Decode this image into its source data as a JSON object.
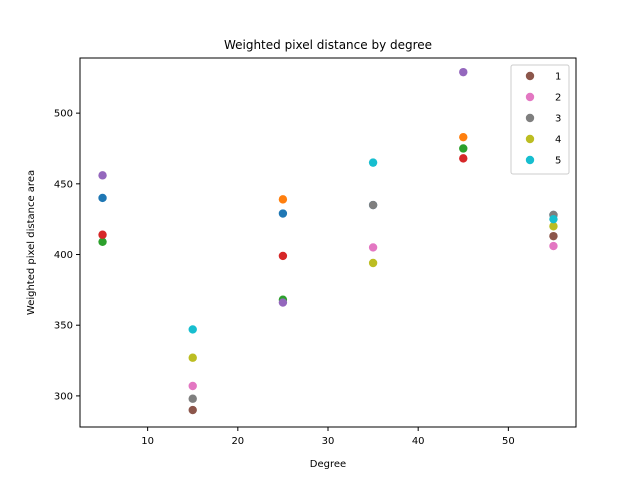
{
  "chart_data": {
    "type": "scatter",
    "title": "Weighted pixel distance by degree",
    "xlabel": "Degree",
    "ylabel": "Weighted pixel distance area",
    "xlim": [
      2.5,
      57.5
    ],
    "ylim": [
      278,
      539
    ],
    "x_ticks": [
      10,
      20,
      30,
      40,
      50
    ],
    "y_ticks": [
      300,
      350,
      400,
      450,
      500
    ],
    "grid": false,
    "legend_position": "top-right",
    "x": [
      5,
      15,
      25,
      35,
      45,
      55
    ],
    "series": [
      {
        "color": "#1f77b4",
        "points": [
          [
            5,
            440
          ],
          [
            25,
            429
          ],
          [
            35,
            435
          ],
          [
            55,
            428
          ]
        ]
      },
      {
        "color": "#ff7f0e",
        "points": [
          [
            25,
            439
          ],
          [
            45,
            483
          ]
        ]
      },
      {
        "color": "#2ca02c",
        "points": [
          [
            5,
            409
          ],
          [
            25,
            368
          ],
          [
            45,
            475
          ]
        ]
      },
      {
        "color": "#d62728",
        "points": [
          [
            5,
            414
          ],
          [
            25,
            399
          ],
          [
            45,
            468
          ]
        ]
      },
      {
        "color": "#9467bd",
        "points": [
          [
            5,
            456
          ],
          [
            25,
            366
          ],
          [
            45,
            529
          ]
        ]
      },
      {
        "name": "1",
        "color": "#8c564b",
        "points": [
          [
            15,
            290
          ],
          [
            55,
            413
          ]
        ]
      },
      {
        "name": "2",
        "color": "#e377c2",
        "points": [
          [
            15,
            307
          ],
          [
            35,
            405
          ],
          [
            55,
            406
          ]
        ]
      },
      {
        "name": "3",
        "color": "#7f7f7f",
        "points": [
          [
            15,
            298
          ],
          [
            35,
            435
          ],
          [
            55,
            428
          ]
        ]
      },
      {
        "name": "4",
        "color": "#bcbd22",
        "points": [
          [
            15,
            327
          ],
          [
            35,
            394
          ],
          [
            55,
            420
          ]
        ]
      },
      {
        "name": "5",
        "color": "#17becf",
        "points": [
          [
            15,
            347
          ],
          [
            35,
            465
          ],
          [
            55,
            425
          ]
        ]
      }
    ]
  }
}
